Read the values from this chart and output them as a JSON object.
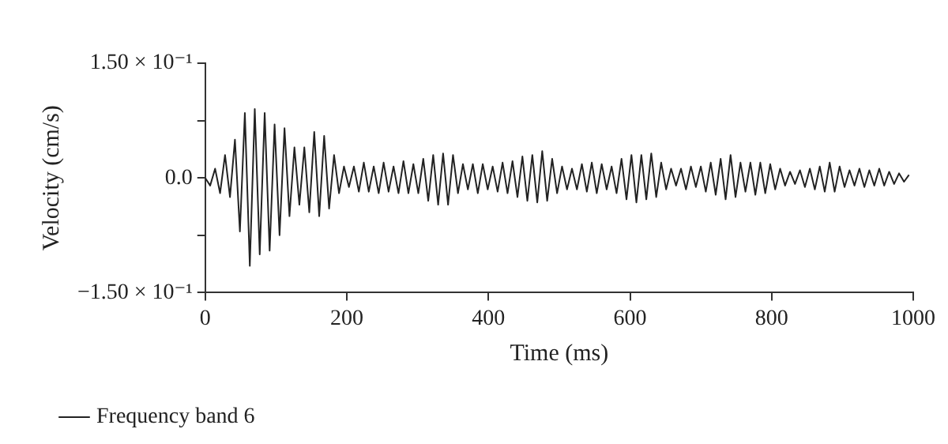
{
  "chart_data": {
    "type": "line",
    "xlabel": "Time (ms)",
    "ylabel": "Velocity (cm/s)",
    "xlim": [
      0,
      1000
    ],
    "xticks": [
      0,
      200,
      400,
      600,
      800,
      1000
    ],
    "ylim": [
      -0.15,
      0.15
    ],
    "yticks": [
      {
        "value": -0.15,
        "label": "−1.50 × 10⁻¹"
      },
      {
        "value": -0.075,
        "label": null
      },
      {
        "value": 0,
        "label": "0.0"
      },
      {
        "value": 0.075,
        "label": null
      },
      {
        "value": 0.15,
        "label": "1.50 × 10⁻¹"
      }
    ],
    "grid": false,
    "legend": "bottom left",
    "marker": "none",
    "line_style": "solid",
    "series": [
      {
        "name": "Frequency band 6",
        "color": "#222222",
        "x": [
          0,
          7,
          14,
          21,
          28,
          35,
          42,
          49,
          56,
          63,
          70,
          77,
          84,
          91,
          98,
          105,
          112,
          119,
          126,
          133,
          140,
          147,
          154,
          161,
          168,
          175,
          182,
          189,
          196,
          203,
          210,
          217,
          224,
          231,
          238,
          245,
          252,
          259,
          266,
          273,
          280,
          287,
          294,
          301,
          308,
          315,
          322,
          329,
          336,
          343,
          350,
          357,
          364,
          371,
          378,
          385,
          392,
          399,
          406,
          413,
          420,
          427,
          434,
          441,
          448,
          455,
          462,
          469,
          476,
          483,
          490,
          497,
          504,
          511,
          518,
          525,
          532,
          539,
          546,
          553,
          560,
          567,
          574,
          581,
          588,
          595,
          602,
          609,
          616,
          623,
          630,
          637,
          644,
          651,
          658,
          665,
          672,
          679,
          686,
          693,
          700,
          707,
          714,
          721,
          728,
          735,
          742,
          749,
          756,
          763,
          770,
          777,
          784,
          791,
          798,
          805,
          812,
          819,
          826,
          833,
          840,
          847,
          854,
          861,
          868,
          875,
          882,
          889,
          896,
          903,
          910,
          917,
          924,
          931,
          938,
          945,
          952,
          959,
          966,
          973,
          980,
          987,
          994
        ],
        "values": [
          0,
          -0.01,
          0.012,
          -0.02,
          0.03,
          -0.025,
          0.05,
          -0.07,
          0.085,
          -0.115,
          0.09,
          -0.1,
          0.085,
          -0.095,
          0.07,
          -0.075,
          0.065,
          -0.05,
          0.04,
          -0.035,
          0.04,
          -0.045,
          0.06,
          -0.05,
          0.055,
          -0.04,
          0.03,
          -0.02,
          0.015,
          -0.012,
          0.015,
          -0.018,
          0.02,
          -0.018,
          0.015,
          -0.02,
          0.02,
          -0.018,
          0.015,
          -0.02,
          0.022,
          -0.02,
          0.018,
          -0.02,
          0.025,
          -0.03,
          0.03,
          -0.035,
          0.032,
          -0.035,
          0.03,
          -0.02,
          0.018,
          -0.015,
          0.018,
          -0.02,
          0.018,
          -0.015,
          0.015,
          -0.018,
          0.02,
          -0.02,
          0.022,
          -0.025,
          0.028,
          -0.03,
          0.03,
          -0.032,
          0.035,
          -0.03,
          0.025,
          -0.02,
          0.015,
          -0.015,
          0.012,
          -0.015,
          0.018,
          -0.018,
          0.02,
          -0.02,
          0.018,
          -0.015,
          0.015,
          -0.02,
          0.025,
          -0.028,
          0.03,
          -0.032,
          0.03,
          -0.028,
          0.032,
          -0.025,
          0.02,
          -0.015,
          0.012,
          -0.01,
          0.012,
          -0.015,
          0.015,
          -0.012,
          0.015,
          -0.018,
          0.02,
          -0.022,
          0.025,
          -0.028,
          0.03,
          -0.025,
          0.02,
          -0.018,
          0.02,
          -0.022,
          0.02,
          -0.02,
          0.018,
          -0.015,
          0.012,
          -0.01,
          0.008,
          -0.008,
          0.01,
          -0.012,
          0.012,
          -0.015,
          0.015,
          -0.018,
          0.02,
          -0.018,
          0.015,
          -0.012,
          0.01,
          -0.01,
          0.012,
          -0.012,
          0.01,
          -0.01,
          0.012,
          -0.01,
          0.008,
          -0.008,
          0.006,
          -0.005,
          0.004
        ]
      }
    ]
  }
}
